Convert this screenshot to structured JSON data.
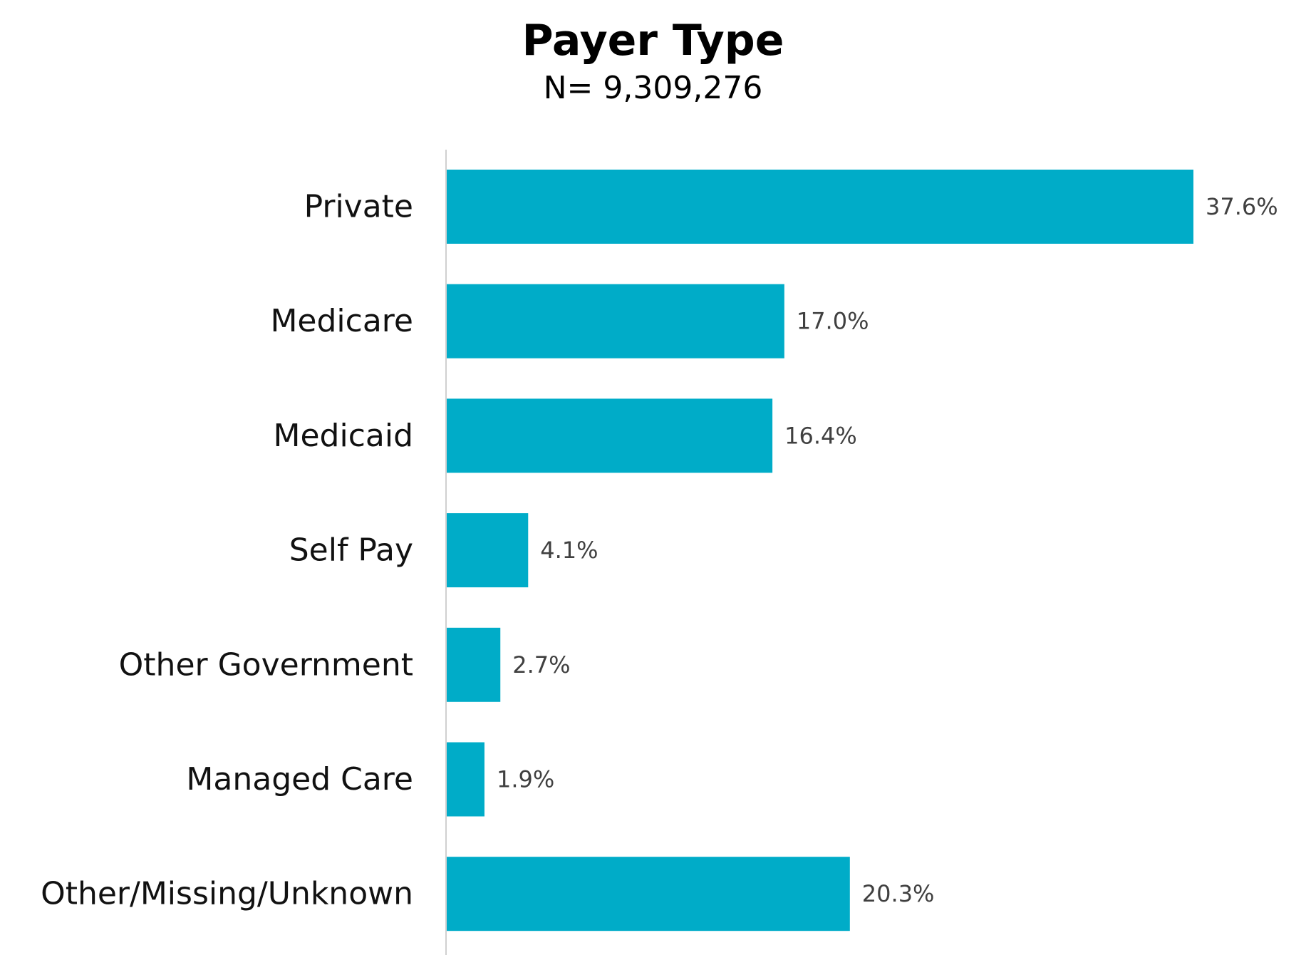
{
  "chart_data": {
    "type": "bar",
    "orientation": "horizontal",
    "title": "Payer Type",
    "subtitle": "N= 9,309,276",
    "categories": [
      "Private",
      "Medicare",
      "Medicaid",
      "Self Pay",
      "Other Government",
      "Managed Care",
      "Other/Missing/Unknown"
    ],
    "values": [
      37.6,
      17.0,
      16.4,
      4.1,
      2.7,
      1.9,
      20.3
    ],
    "value_labels": [
      "37.6%",
      "17.0%",
      "16.4%",
      "4.1%",
      "2.7%",
      "1.9%",
      "20.3%"
    ],
    "xlabel": "",
    "ylabel": "",
    "xlim": [
      0,
      37.6
    ],
    "grid": false,
    "legend": "none",
    "bar_color": "#00ACC8",
    "axis_color": "#D0D0D0"
  }
}
